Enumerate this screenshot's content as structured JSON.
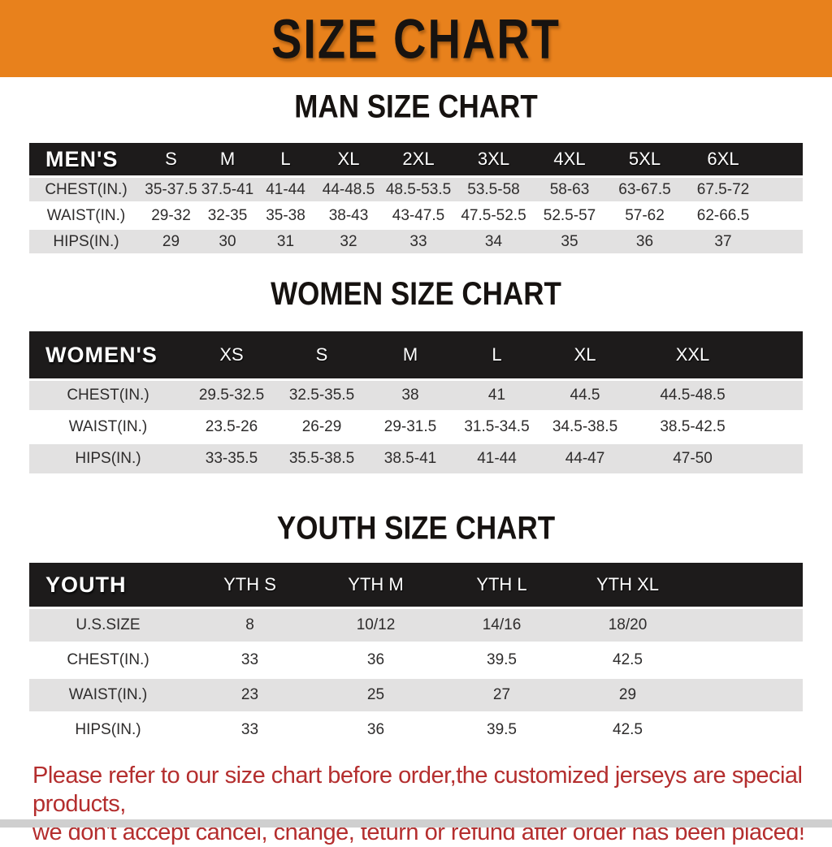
{
  "banner": {
    "title": "SIZE CHART",
    "background_color": "#E8811C",
    "title_color": "#171310"
  },
  "colors": {
    "table_header_bg": "#1d1b1b",
    "row_stripe_gray": "#e2e1e1",
    "row_stripe_white": "#ffffff",
    "disclaimer_red": "#b42e2e"
  },
  "sections": [
    {
      "heading": "MAN SIZE CHART",
      "table": {
        "label_header": "MEN'S",
        "size_headers": [
          "S",
          "M",
          "L",
          "XL",
          "2XL",
          "3XL",
          "4XL",
          "5XL",
          "6XL"
        ],
        "rows": [
          {
            "label": "CHEST(IN.)",
            "values": [
              "35-37.5",
              "37.5-41",
              "41-44",
              "44-48.5",
              "48.5-53.5",
              "53.5-58",
              "58-63",
              "63-67.5",
              "67.5-72"
            ]
          },
          {
            "label": "WAIST(IN.)",
            "values": [
              "29-32",
              "32-35",
              "35-38",
              "38-43",
              "43-47.5",
              "47.5-52.5",
              "52.5-57",
              "57-62",
              "62-66.5"
            ]
          },
          {
            "label": "HIPS(IN.)",
            "values": [
              "29",
              "30",
              "31",
              "32",
              "33",
              "34",
              "35",
              "36",
              "37"
            ]
          }
        ]
      }
    },
    {
      "heading": "WOMEN SIZE CHART",
      "table": {
        "label_header": "WOMEN'S",
        "size_headers": [
          "XS",
          "S",
          "M",
          "L",
          "XL",
          "XXL"
        ],
        "rows": [
          {
            "label": "CHEST(IN.)",
            "values": [
              "29.5-32.5",
              "32.5-35.5",
              "38",
              "41",
              "44.5",
              "44.5-48.5"
            ]
          },
          {
            "label": "WAIST(IN.)",
            "values": [
              "23.5-26",
              "26-29",
              "29-31.5",
              "31.5-34.5",
              "34.5-38.5",
              "38.5-42.5"
            ]
          },
          {
            "label": "HIPS(IN.)",
            "values": [
              "33-35.5",
              "35.5-38.5",
              "38.5-41",
              "41-44",
              "44-47",
              "47-50"
            ]
          }
        ]
      }
    },
    {
      "heading": "YOUTH SIZE CHART",
      "table": {
        "label_header": "YOUTH",
        "size_headers": [
          "YTH S",
          "YTH M",
          "YTH L",
          "YTH XL"
        ],
        "rows": [
          {
            "label": "U.S.SIZE",
            "values": [
              "8",
              "10/12",
              "14/16",
              "18/20"
            ]
          },
          {
            "label": "CHEST(IN.)",
            "values": [
              "33",
              "36",
              "39.5",
              "42.5"
            ]
          },
          {
            "label": "WAIST(IN.)",
            "values": [
              "23",
              "25",
              "27",
              "29"
            ]
          },
          {
            "label": "HIPS(IN.)",
            "values": [
              "33",
              "36",
              "39.5",
              "42.5"
            ]
          }
        ]
      }
    }
  ],
  "disclaimer": {
    "line1": "Please refer to our size chart before order,the customized jerseys are special products,",
    "line2": "we don't accept cancel, change, teturn or refund after order has been placed!"
  }
}
